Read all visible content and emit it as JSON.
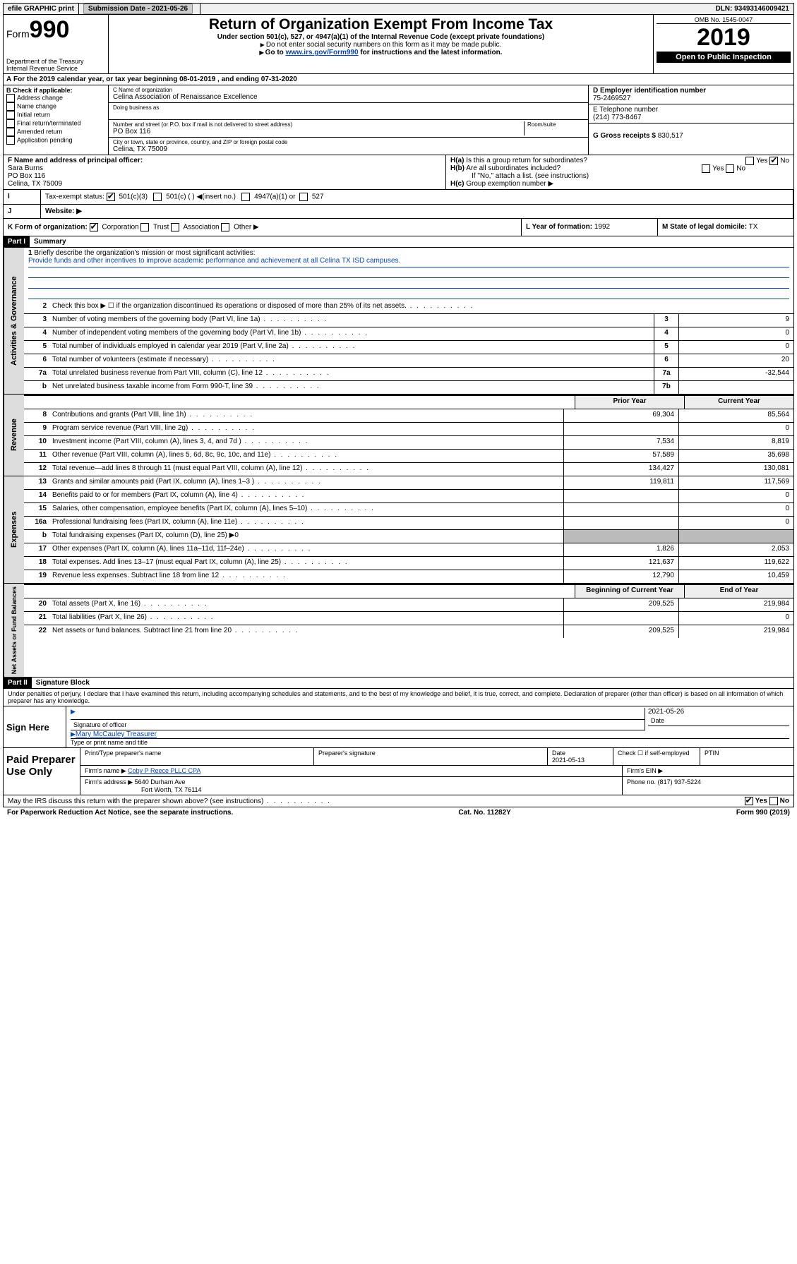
{
  "top": {
    "efile": "efile GRAPHIC print",
    "submission": "Submission Date - 2021-05-26",
    "dln": "DLN: 93493146009421"
  },
  "header": {
    "form_label": "Form",
    "form_num": "990",
    "title": "Return of Organization Exempt From Income Tax",
    "subtitle": "Under section 501(c), 527, or 4947(a)(1) of the Internal Revenue Code (except private foundations)",
    "note1": "Do not enter social security numbers on this form as it may be made public.",
    "note2_pre": "Go to ",
    "note2_link": "www.irs.gov/Form990",
    "note2_post": " for instructions and the latest information.",
    "dept": "Department of the Treasury\nInternal Revenue Service",
    "omb": "OMB No. 1545-0047",
    "year": "2019",
    "open": "Open to Public Inspection"
  },
  "period": "For the 2019 calendar year, or tax year beginning 08-01-2019   , and ending 07-31-2020",
  "boxB": {
    "label": "B Check if applicable:",
    "items": [
      "Address change",
      "Name change",
      "Initial return",
      "Final return/terminated",
      "Amended return",
      "Application pending"
    ]
  },
  "boxC": {
    "name_label": "C Name of organization",
    "name": "Celina Association of Renaissance Excellence",
    "dba_label": "Doing business as",
    "addr_label": "Number and street (or P.O. box if mail is not delivered to street address)",
    "room_label": "Room/suite",
    "addr": "PO Box 116",
    "city_label": "City or town, state or province, country, and ZIP or foreign postal code",
    "city": "Celina, TX  75009"
  },
  "boxD": {
    "label": "D Employer identification number",
    "value": "75-2469527"
  },
  "boxE": {
    "label": "E Telephone number",
    "value": "(214) 773-8467"
  },
  "boxG": {
    "label": "G Gross receipts $",
    "value": "830,517"
  },
  "boxF": {
    "label": "F  Name and address of principal officer:",
    "name": "Sara Burns",
    "addr1": "PO Box 116",
    "addr2": "Celina, TX  75009"
  },
  "boxH": {
    "a": "Is this a group return for subordinates?",
    "b": "Are all subordinates included?",
    "note": "If \"No,\" attach a list. (see instructions)",
    "c": "Group exemption number ▶"
  },
  "boxI": {
    "label": "Tax-exempt status:",
    "opt1": "501(c)(3)",
    "opt2": "501(c) (  ) ◀(insert no.)",
    "opt3": "4947(a)(1) or",
    "opt4": "527"
  },
  "boxJ": {
    "label": "Website: ▶"
  },
  "boxK": {
    "label": "K Form of organization:",
    "opts": [
      "Corporation",
      "Trust",
      "Association",
      "Other ▶"
    ]
  },
  "boxL": {
    "label": "L Year of formation:",
    "value": "1992"
  },
  "boxM": {
    "label": "M State of legal domicile:",
    "value": "TX"
  },
  "part1": {
    "label": "Part I",
    "title": "Summary"
  },
  "mission": {
    "line1_label": "Briefly describe the organization's mission or most significant activities:",
    "text": "Provide funds and other incentives to improve academic performance and achievement at all Celina TX ISD campuses."
  },
  "lines_gov": [
    {
      "n": "2",
      "d": "Check this box ▶ ☐  if the organization discontinued its operations or disposed of more than 25% of its net assets."
    },
    {
      "n": "3",
      "d": "Number of voting members of the governing body (Part VI, line 1a)",
      "m": "3",
      "v": "9"
    },
    {
      "n": "4",
      "d": "Number of independent voting members of the governing body (Part VI, line 1b)",
      "m": "4",
      "v": "0"
    },
    {
      "n": "5",
      "d": "Total number of individuals employed in calendar year 2019 (Part V, line 2a)",
      "m": "5",
      "v": "0"
    },
    {
      "n": "6",
      "d": "Total number of volunteers (estimate if necessary)",
      "m": "6",
      "v": "20"
    },
    {
      "n": "7a",
      "d": "Total unrelated business revenue from Part VIII, column (C), line 12",
      "m": "7a",
      "v": "-32,544"
    },
    {
      "n": "b",
      "d": "Net unrelated business taxable income from Form 990-T, line 39",
      "m": "7b",
      "v": ""
    }
  ],
  "col_headers": {
    "prior": "Prior Year",
    "current": "Current Year"
  },
  "col_headers2": {
    "prior": "Beginning of Current Year",
    "current": "End of Year"
  },
  "lines_rev": [
    {
      "n": "8",
      "d": "Contributions and grants (Part VIII, line 1h)",
      "p": "69,304",
      "c": "85,564"
    },
    {
      "n": "9",
      "d": "Program service revenue (Part VIII, line 2g)",
      "p": "",
      "c": "0"
    },
    {
      "n": "10",
      "d": "Investment income (Part VIII, column (A), lines 3, 4, and 7d )",
      "p": "7,534",
      "c": "8,819"
    },
    {
      "n": "11",
      "d": "Other revenue (Part VIII, column (A), lines 5, 6d, 8c, 9c, 10c, and 11e)",
      "p": "57,589",
      "c": "35,698"
    },
    {
      "n": "12",
      "d": "Total revenue—add lines 8 through 11 (must equal Part VIII, column (A), line 12)",
      "p": "134,427",
      "c": "130,081"
    }
  ],
  "lines_exp": [
    {
      "n": "13",
      "d": "Grants and similar amounts paid (Part IX, column (A), lines 1–3 )",
      "p": "119,811",
      "c": "117,569"
    },
    {
      "n": "14",
      "d": "Benefits paid to or for members (Part IX, column (A), line 4)",
      "p": "",
      "c": "0"
    },
    {
      "n": "15",
      "d": "Salaries, other compensation, employee benefits (Part IX, column (A), lines 5–10)",
      "p": "",
      "c": "0"
    },
    {
      "n": "16a",
      "d": "Professional fundraising fees (Part IX, column (A), line 11e)",
      "p": "",
      "c": "0"
    },
    {
      "n": "b",
      "d": "Total fundraising expenses (Part IX, column (D), line 25) ▶0",
      "grey": true
    },
    {
      "n": "17",
      "d": "Other expenses (Part IX, column (A), lines 11a–11d, 11f–24e)",
      "p": "1,826",
      "c": "2,053"
    },
    {
      "n": "18",
      "d": "Total expenses. Add lines 13–17 (must equal Part IX, column (A), line 25)",
      "p": "121,637",
      "c": "119,622"
    },
    {
      "n": "19",
      "d": "Revenue less expenses. Subtract line 18 from line 12",
      "p": "12,790",
      "c": "10,459"
    }
  ],
  "lines_net": [
    {
      "n": "20",
      "d": "Total assets (Part X, line 16)",
      "p": "209,525",
      "c": "219,984"
    },
    {
      "n": "21",
      "d": "Total liabilities (Part X, line 26)",
      "p": "",
      "c": "0"
    },
    {
      "n": "22",
      "d": "Net assets or fund balances. Subtract line 21 from line 20",
      "p": "209,525",
      "c": "219,984"
    }
  ],
  "part2": {
    "label": "Part II",
    "title": "Signature Block"
  },
  "perjury": "Under penalties of perjury, I declare that I have examined this return, including accompanying schedules and statements, and to the best of my knowledge and belief, it is true, correct, and complete. Declaration of preparer (other than officer) is based on all information of which preparer has any knowledge.",
  "sign": {
    "here": "Sign Here",
    "sig_label": "Signature of officer",
    "date": "2021-05-26",
    "date_label": "Date",
    "name": "Mary McCauley Treasurer",
    "name_label": "Type or print name and title"
  },
  "paid": {
    "label": "Paid Preparer Use Only",
    "prep_label": "Print/Type preparer's name",
    "sig_label": "Preparer's signature",
    "date_label": "Date",
    "date": "2021-05-13",
    "check_label": "Check ☐ if self-employed",
    "ptin_label": "PTIN",
    "firm_name_label": "Firm's name   ▶",
    "firm_name": "Coby P Reece PLLC CPA",
    "firm_ein_label": "Firm's EIN ▶",
    "firm_addr_label": "Firm's address ▶",
    "firm_addr1": "5640 Durham Ave",
    "firm_addr2": "Fort Worth, TX  76114",
    "phone_label": "Phone no.",
    "phone": "(817) 937-5224"
  },
  "discuss": "May the IRS discuss this return with the preparer shown above? (see instructions)",
  "footer": {
    "paperwork": "For Paperwork Reduction Act Notice, see the separate instructions.",
    "cat": "Cat. No. 11282Y",
    "form": "Form 990 (2019)"
  }
}
